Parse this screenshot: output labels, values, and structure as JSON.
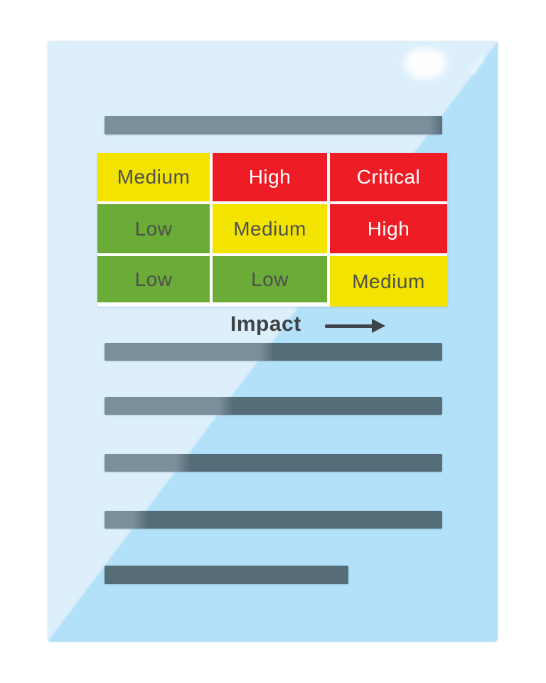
{
  "illustration": {
    "kind": "glossy-document-page-with-risk-matrix"
  },
  "risk_matrix": {
    "rows": [
      {
        "cells": [
          {
            "label": "Medium",
            "level": "medium"
          },
          {
            "label": "High",
            "level": "high"
          },
          {
            "label": "Critical",
            "level": "critical"
          }
        ]
      },
      {
        "cells": [
          {
            "label": "Low",
            "level": "low"
          },
          {
            "label": "Medium",
            "level": "medium"
          },
          {
            "label": "High",
            "level": "high"
          }
        ]
      },
      {
        "cells": [
          {
            "label": "Low",
            "level": "low"
          },
          {
            "label": "Low",
            "level": "low"
          },
          {
            "label": "Medium",
            "level": "medium"
          }
        ]
      }
    ],
    "axis": {
      "label": "Impact",
      "direction": "right",
      "icon": "right-arrow-icon"
    }
  },
  "placeholder_text_lines": {
    "count": 6,
    "full_width_count": 5,
    "short_count": 1
  },
  "colors": {
    "page_light": "#DCEFFB",
    "page_shaded": "#B2E1F9",
    "risk_low_green": "#6BAB38",
    "risk_medium_yellow": "#F3E300",
    "risk_high_red": "#EE1C25",
    "cell_text_dark": "#4E504C",
    "cell_text_light": "#FFFFFF",
    "axis_text": "#3E4347",
    "text_line_light": "#7B8E9B",
    "text_line_shaded": "#556C79"
  }
}
